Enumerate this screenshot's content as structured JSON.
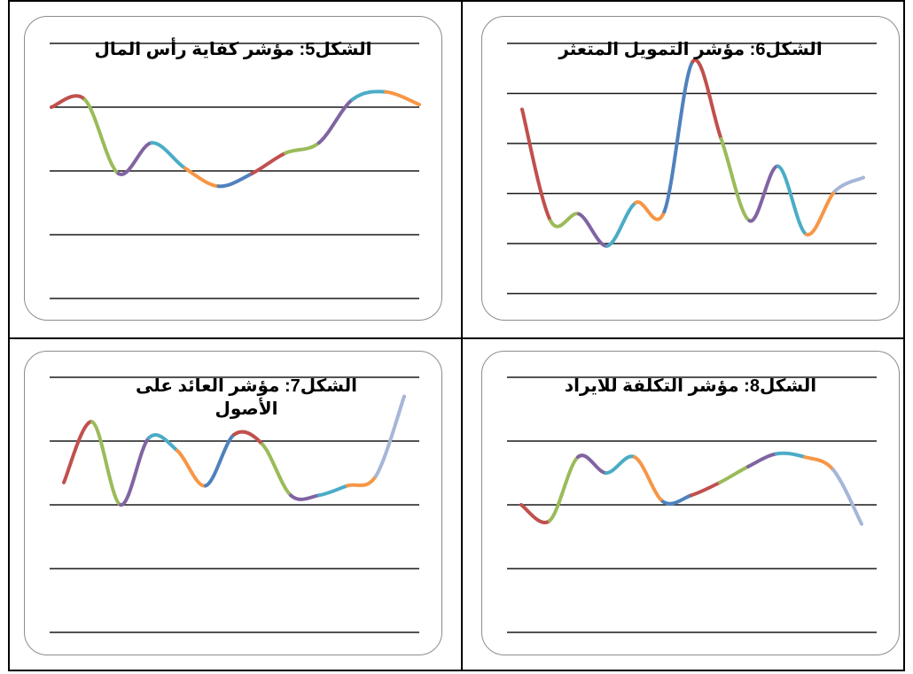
{
  "chart_data": [
    {
      "type": "line",
      "title": "الشكل5: مؤشر كفاية رأس المال",
      "values": [
        2.75,
        2.9,
        1.45,
        2.05,
        1.55,
        1.2,
        1.45,
        1.85,
        2.05,
        2.9,
        3.05,
        2.8
      ],
      "ylim": [
        -1,
        4
      ],
      "grid": true,
      "segment_colors": [
        "#c0504d",
        "#9bbb59",
        "#8064a2",
        "#4bacc6",
        "#f79646",
        "#4f81bd",
        "#c0504d",
        "#9bbb59",
        "#8064a2",
        "#4bacc6",
        "#f79646",
        "#a5b6d8"
      ]
    },
    {
      "type": "line",
      "title": "الشكل6: مؤشر التمويل المتعثر",
      "values": [
        3.55,
        1.1,
        1.25,
        0.55,
        1.5,
        1.3,
        4.6,
        2.9,
        1.1,
        2.3,
        0.8,
        1.75,
        2.05
      ],
      "ylim": [
        -0.5,
        5
      ],
      "grid": true,
      "segment_colors": [
        "#c0504d",
        "#9bbb59",
        "#8064a2",
        "#4bacc6",
        "#f79646",
        "#4f81bd",
        "#c0504d",
        "#9bbb59",
        "#8064a2",
        "#4bacc6",
        "#f79646",
        "#a5b6d8"
      ]
    },
    {
      "type": "line",
      "title": "الشكل7: مؤشر العائد على الأصول",
      "values": [
        1.35,
        2.3,
        1.0,
        2.05,
        1.85,
        1.3,
        2.1,
        1.95,
        1.15,
        1.15,
        1.3,
        1.45,
        2.7
      ],
      "ylim": [
        -1,
        3
      ],
      "grid": true,
      "segment_colors": [
        "#c0504d",
        "#9bbb59",
        "#8064a2",
        "#4bacc6",
        "#f79646",
        "#4f81bd",
        "#c0504d",
        "#9bbb59",
        "#8064a2",
        "#4bacc6",
        "#f79646",
        "#a5b6d8"
      ]
    },
    {
      "type": "line",
      "title": "الشكل8: مؤشر التكلفة للايراد",
      "values": [
        1.0,
        0.75,
        1.75,
        1.5,
        1.75,
        1.05,
        1.15,
        1.35,
        1.6,
        1.8,
        1.75,
        1.55,
        0.7
      ],
      "ylim": [
        -1,
        3
      ],
      "grid": true,
      "segment_colors": [
        "#c0504d",
        "#9bbb59",
        "#8064a2",
        "#4bacc6",
        "#f79646",
        "#4f81bd",
        "#c0504d",
        "#9bbb59",
        "#8064a2",
        "#4bacc6",
        "#f79646",
        "#a5b6d8"
      ]
    }
  ]
}
